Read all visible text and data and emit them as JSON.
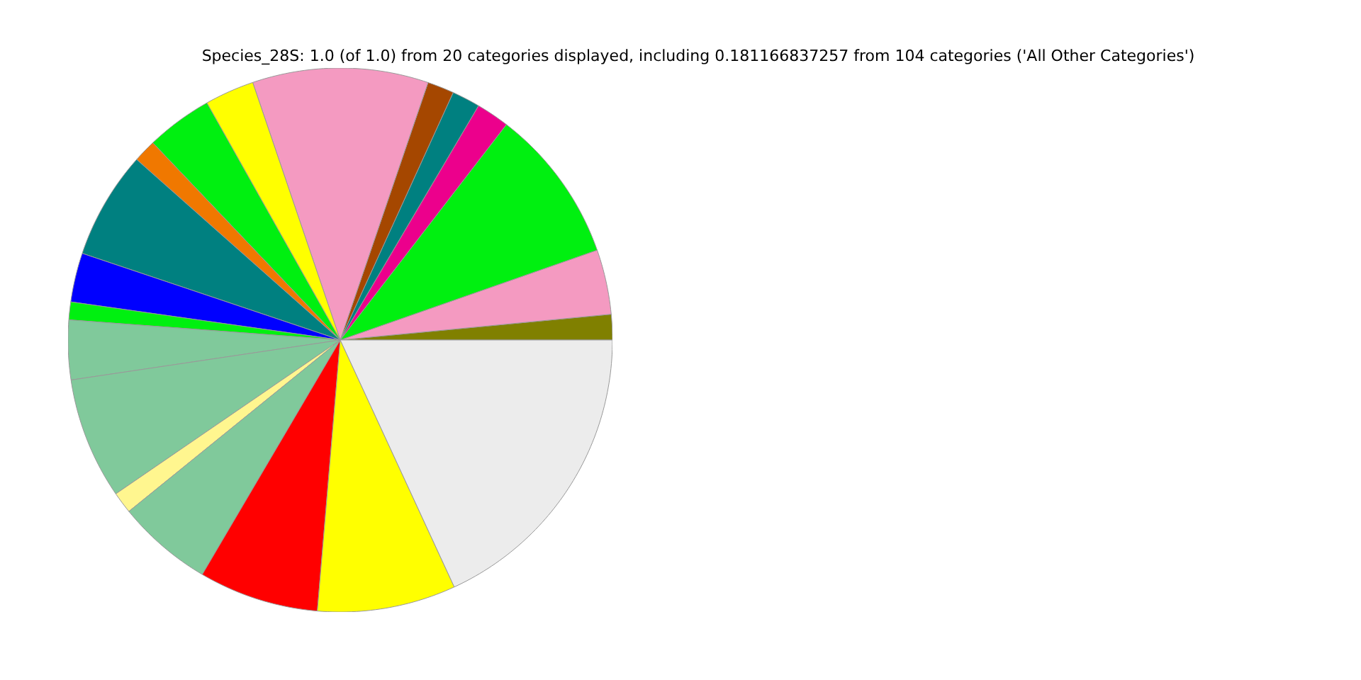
{
  "chart_data": {
    "type": "pie",
    "title": "Species_28S: 1.0 (of 1.0) from 20 categories displayed, including 0.181166837257 from 104 categories ('All Other Categories')",
    "categories": [
      null,
      null,
      null,
      null,
      null,
      null,
      null,
      null,
      null,
      null,
      null,
      null,
      null,
      null,
      null,
      null,
      null,
      null,
      null,
      null
    ],
    "values": [
      1.51,
      3.85,
      9.19,
      1.97,
      1.67,
      1.58,
      10.44,
      2.94,
      3.94,
      1.36,
      6.39,
      2.92,
      1.06,
      3.53,
      7.22,
      1.28,
      5.69,
      7.12,
      8.22,
      18.12
    ],
    "colors": [
      "#808000",
      "#f49ac1",
      "#00f010",
      "#ec008c",
      "#008080",
      "#a54700",
      "#f49ac1",
      "#ffff00",
      "#00f010",
      "#f07800",
      "#008080",
      "#0000ff",
      "#00f010",
      "#80c99b",
      "#80c99b",
      "#fff68f",
      "#80c99b",
      "#ff0000",
      "#ffff00",
      "#ececec"
    ]
  }
}
